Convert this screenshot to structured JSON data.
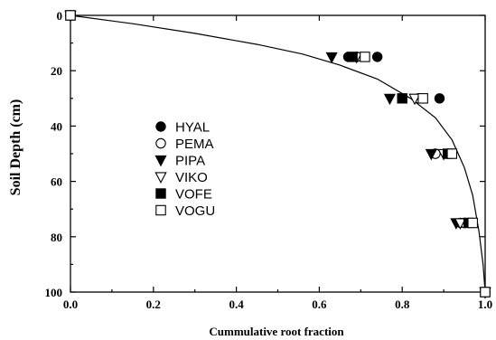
{
  "chart_data": {
    "type": "scatter",
    "title": "",
    "xlabel": "Cummulative root fraction",
    "ylabel": "Soil Depth (cm)",
    "xlim": [
      0.0,
      1.0
    ],
    "ylim": [
      0,
      100
    ],
    "y_inverted": true,
    "xticks": [
      "0.0",
      "0.2",
      "0.4",
      "0.6",
      "0.8",
      "1.0"
    ],
    "yticks": [
      "0",
      "20",
      "40",
      "60",
      "80",
      "100"
    ],
    "grid": false,
    "legend_position": "middle-left",
    "series": [
      {
        "name": "HYAL",
        "marker": "filled-circle",
        "color": "#000000",
        "points": [
          [
            0.0,
            0
          ],
          [
            0.67,
            15
          ],
          [
            0.74,
            15
          ],
          [
            0.89,
            30
          ],
          [
            0.91,
            50
          ],
          [
            0.94,
            75
          ],
          [
            1.0,
            100
          ]
        ]
      },
      {
        "name": "PEMA",
        "marker": "open-circle",
        "color": "#000000",
        "points": [
          [
            0.0,
            0
          ],
          [
            0.69,
            15
          ],
          [
            0.84,
            30
          ],
          [
            0.88,
            50
          ],
          [
            0.95,
            75
          ],
          [
            1.0,
            100
          ]
        ]
      },
      {
        "name": "PIPA",
        "marker": "filled-triangle-down",
        "color": "#000000",
        "points": [
          [
            0.0,
            0
          ],
          [
            0.63,
            15
          ],
          [
            0.77,
            30
          ],
          [
            0.87,
            50
          ],
          [
            0.93,
            75
          ],
          [
            1.0,
            100
          ]
        ]
      },
      {
        "name": "VIKO",
        "marker": "open-triangle-down",
        "color": "#000000",
        "points": [
          [
            0.0,
            0
          ],
          [
            0.69,
            15
          ],
          [
            0.83,
            30
          ],
          [
            0.9,
            50
          ],
          [
            0.94,
            75
          ],
          [
            1.0,
            100
          ]
        ]
      },
      {
        "name": "VOFE",
        "marker": "filled-square",
        "color": "#000000",
        "points": [
          [
            0.0,
            0
          ],
          [
            0.68,
            15
          ],
          [
            0.8,
            30
          ],
          [
            0.91,
            50
          ],
          [
            0.96,
            75
          ],
          [
            1.0,
            100
          ]
        ]
      },
      {
        "name": "VOGU",
        "marker": "open-square",
        "color": "#000000",
        "points": [
          [
            0.0,
            0
          ],
          [
            0.71,
            15
          ],
          [
            0.85,
            30
          ],
          [
            0.92,
            50
          ],
          [
            0.97,
            75
          ],
          [
            1.0,
            100
          ]
        ]
      }
    ],
    "fit_curve": {
      "points": [
        [
          0.0,
          0
        ],
        [
          0.15,
          3
        ],
        [
          0.3,
          6.5
        ],
        [
          0.45,
          10.5
        ],
        [
          0.56,
          14
        ],
        [
          0.65,
          18
        ],
        [
          0.74,
          23
        ],
        [
          0.82,
          30
        ],
        [
          0.88,
          37
        ],
        [
          0.92,
          45
        ],
        [
          0.95,
          55
        ],
        [
          0.97,
          65
        ],
        [
          0.985,
          78
        ],
        [
          0.995,
          90
        ],
        [
          1.0,
          100
        ]
      ]
    }
  }
}
